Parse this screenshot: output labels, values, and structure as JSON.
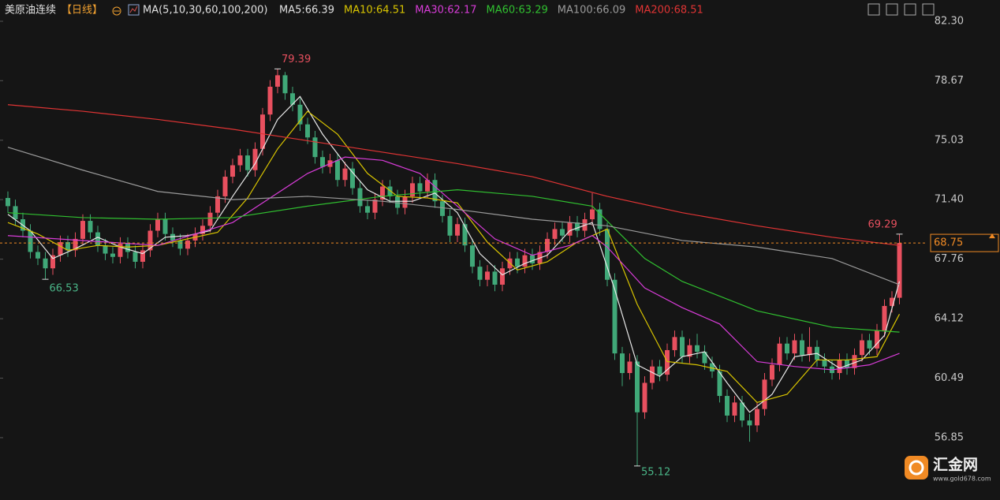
{
  "header": {
    "symbol": "美原油连续",
    "period": "【日线】",
    "ma_label": "MA(5,10,30,60,100,200)"
  },
  "logo": {
    "name": "汇金网",
    "url": "www.gold678.com"
  },
  "chart_data": {
    "type": "candlestick",
    "up_color": "#e8505f",
    "down_color": "#40a878",
    "last_price_color": "#f08a24",
    "ylim": [
      53.04,
      83.6
    ],
    "yticks": [
      {
        "value": 82.3,
        "label": "82.30"
      },
      78.67,
      75.03,
      {
        "value": 71.4,
        "label": "71.40"
      },
      67.76,
      64.12,
      60.49,
      56.85
    ],
    "open": [
      71.5,
      71.0,
      70.2,
      69.5,
      68.2,
      67.8,
      67.2,
      68.0,
      68.8,
      68.3,
      69.0,
      70.1,
      69.4,
      68.6,
      68.1,
      67.9,
      68.7,
      68.2,
      67.6,
      68.3,
      69.5,
      70.2,
      69.3,
      68.9,
      68.4,
      68.9,
      69.3,
      69.8,
      70.6,
      71.6,
      72.8,
      73.5,
      74.1,
      73.2,
      74.5,
      76.6,
      78.3,
      79.0,
      77.9,
      77.2,
      76.0,
      75.2,
      74.0,
      73.4,
      73.8,
      72.6,
      73.3,
      72.1,
      71.0,
      70.6,
      71.4,
      72.2,
      71.6,
      70.9,
      71.6,
      72.4,
      71.9,
      72.6,
      71.3,
      70.4,
      69.2,
      69.9,
      68.6,
      67.3,
      66.5,
      67.0,
      66.2,
      67.2,
      67.8,
      67.3,
      68.0,
      67.5,
      68.2,
      69.0,
      69.6,
      69.2,
      70.0,
      69.5,
      70.2,
      70.8,
      69.6,
      66.5,
      62.0,
      60.8,
      61.5,
      58.4,
      60.2,
      61.2,
      60.7,
      62.2,
      63.0,
      61.8,
      62.5,
      62.1,
      61.4,
      60.9,
      59.4,
      58.2,
      59.0,
      57.9,
      57.6,
      58.6,
      60.4,
      61.3,
      62.6,
      62.0,
      62.8,
      61.9,
      62.4,
      61.6,
      61.2,
      60.8,
      61.6,
      61.1,
      61.9,
      62.8,
      62.3,
      63.4,
      64.9,
      65.4
    ],
    "high": [
      71.9,
      71.4,
      70.6,
      69.9,
      68.6,
      68.2,
      68.4,
      69.2,
      69.2,
      69.4,
      70.5,
      70.5,
      69.8,
      69.0,
      68.5,
      69.1,
      69.1,
      68.6,
      68.7,
      69.9,
      70.6,
      70.6,
      69.7,
      69.3,
      69.3,
      69.7,
      70.2,
      71.0,
      72.0,
      73.2,
      73.9,
      74.5,
      74.5,
      74.9,
      77.0,
      78.7,
      79.39,
      79.2,
      78.3,
      77.6,
      76.4,
      75.6,
      74.4,
      74.2,
      74.2,
      73.7,
      73.7,
      72.5,
      71.4,
      71.8,
      72.6,
      72.6,
      72.0,
      72.0,
      72.8,
      72.8,
      73.0,
      73.0,
      71.7,
      70.8,
      70.3,
      70.3,
      69.0,
      67.7,
      67.4,
      67.4,
      67.6,
      68.2,
      68.2,
      68.4,
      68.4,
      68.6,
      69.4,
      70.0,
      70.0,
      70.4,
      70.4,
      70.6,
      71.8,
      71.2,
      70.0,
      66.9,
      62.4,
      62.0,
      61.9,
      60.6,
      61.6,
      61.6,
      62.6,
      63.4,
      63.4,
      62.9,
      63.2,
      62.5,
      61.8,
      61.3,
      59.8,
      59.4,
      59.4,
      58.3,
      59.0,
      60.8,
      61.7,
      63.0,
      63.0,
      63.2,
      63.2,
      63.6,
      62.8,
      62.0,
      61.6,
      62.0,
      62.0,
      62.3,
      63.2,
      63.2,
      63.8,
      65.3,
      65.8,
      69.29
    ],
    "low": [
      70.6,
      69.8,
      69.1,
      67.8,
      67.4,
      66.53,
      66.8,
      67.6,
      67.9,
      67.9,
      68.6,
      69.0,
      68.2,
      67.7,
      67.5,
      67.5,
      67.8,
      67.2,
      67.2,
      67.9,
      69.1,
      68.9,
      68.5,
      68.0,
      68.0,
      68.5,
      68.9,
      69.4,
      70.2,
      71.2,
      72.4,
      73.1,
      72.8,
      72.8,
      74.1,
      76.2,
      77.9,
      77.5,
      76.8,
      75.6,
      74.8,
      73.6,
      73.0,
      73.0,
      72.2,
      72.2,
      71.7,
      70.6,
      70.2,
      70.2,
      71.0,
      71.2,
      70.5,
      70.5,
      71.2,
      71.5,
      71.5,
      70.9,
      70.0,
      68.8,
      68.8,
      68.2,
      66.9,
      66.1,
      66.1,
      65.8,
      65.8,
      66.8,
      66.9,
      66.9,
      67.1,
      67.1,
      67.8,
      68.6,
      68.8,
      68.8,
      69.1,
      69.1,
      69.8,
      69.2,
      66.1,
      61.6,
      60.0,
      60.4,
      55.12,
      58.0,
      59.8,
      60.3,
      60.3,
      61.8,
      61.4,
      61.4,
      61.7,
      61.0,
      60.5,
      59.0,
      57.8,
      57.8,
      57.5,
      56.6,
      57.2,
      58.2,
      60.0,
      60.9,
      61.6,
      61.6,
      61.5,
      61.5,
      61.2,
      60.8,
      60.4,
      60.4,
      60.7,
      60.7,
      61.5,
      61.9,
      61.9,
      63.0,
      64.5,
      65.0
    ],
    "close": [
      71.0,
      70.2,
      69.5,
      68.2,
      67.8,
      67.2,
      68.0,
      68.8,
      68.3,
      69.0,
      70.1,
      69.4,
      68.6,
      68.1,
      67.9,
      68.7,
      68.2,
      67.6,
      68.3,
      69.5,
      70.2,
      69.3,
      68.9,
      68.4,
      68.9,
      69.3,
      69.8,
      70.6,
      71.6,
      72.8,
      73.5,
      74.1,
      73.2,
      74.5,
      76.6,
      78.3,
      79.0,
      77.9,
      77.2,
      76.0,
      75.2,
      74.0,
      73.4,
      73.8,
      72.6,
      73.3,
      72.1,
      71.0,
      70.6,
      71.4,
      72.2,
      71.6,
      70.9,
      71.6,
      72.4,
      71.9,
      72.6,
      71.3,
      70.4,
      69.2,
      69.9,
      68.6,
      67.3,
      66.5,
      67.0,
      66.2,
      67.2,
      67.8,
      67.3,
      68.0,
      67.5,
      68.2,
      69.0,
      69.6,
      69.2,
      70.0,
      69.5,
      70.2,
      70.8,
      69.6,
      66.5,
      62.0,
      60.8,
      61.5,
      58.4,
      60.2,
      61.2,
      60.7,
      62.2,
      63.0,
      61.8,
      62.5,
      62.1,
      61.4,
      60.9,
      59.4,
      58.2,
      59.0,
      57.9,
      57.6,
      58.6,
      60.4,
      61.3,
      62.6,
      62.0,
      62.8,
      61.9,
      62.4,
      61.6,
      61.2,
      60.8,
      61.6,
      61.1,
      61.9,
      62.8,
      62.3,
      63.4,
      64.9,
      65.4,
      68.75
    ],
    "overlays": [
      {
        "name": "MA5:66.39",
        "color": "#e8e8e8",
        "x": [
          0,
          3,
          6,
          9,
          12,
          15,
          18,
          21,
          24,
          27,
          30,
          33,
          36,
          39,
          42,
          45,
          48,
          51,
          54,
          57,
          60,
          63,
          66,
          69,
          72,
          75,
          78,
          81,
          84,
          87,
          90,
          93,
          96,
          99,
          102,
          105,
          108,
          111,
          114,
          117,
          119
        ],
        "values": [
          70.5,
          69.5,
          67.8,
          68.4,
          69.1,
          68.5,
          68.1,
          69.1,
          69.2,
          69.5,
          71.6,
          73.6,
          76.3,
          77.7,
          75.4,
          73.6,
          72.0,
          71.3,
          71.3,
          71.8,
          70.6,
          68.1,
          66.8,
          67.5,
          68.0,
          69.5,
          70.0,
          65.9,
          61.3,
          60.6,
          61.8,
          62.1,
          60.2,
          58.4,
          59.5,
          61.8,
          62.0,
          61.1,
          61.6,
          63.1,
          66.4
        ]
      },
      {
        "name": "MA10:64.51",
        "color": "#d8c400",
        "x": [
          0,
          4,
          8,
          12,
          16,
          20,
          24,
          28,
          32,
          36,
          40,
          44,
          48,
          52,
          56,
          60,
          64,
          68,
          72,
          76,
          80,
          84,
          88,
          92,
          96,
          100,
          104,
          108,
          112,
          116,
          119
        ],
        "values": [
          70.0,
          69.3,
          68.3,
          68.6,
          68.5,
          68.6,
          69.0,
          69.4,
          71.5,
          74.5,
          76.8,
          75.4,
          73.0,
          71.6,
          71.5,
          71.2,
          68.8,
          67.1,
          67.6,
          68.8,
          69.6,
          65.0,
          61.5,
          61.3,
          60.9,
          59.0,
          59.5,
          61.6,
          61.6,
          61.8,
          64.4
        ]
      },
      {
        "name": "MA30:62.17",
        "color": "#d83cd8",
        "x": [
          0,
          10,
          20,
          30,
          40,
          45,
          50,
          55,
          60,
          65,
          70,
          75,
          78,
          80,
          85,
          90,
          95,
          100,
          105,
          110,
          115,
          119
        ],
        "values": [
          69.2,
          68.9,
          68.6,
          70.0,
          73.0,
          74.0,
          73.8,
          73.0,
          71.0,
          69.0,
          68.0,
          68.6,
          69.2,
          68.5,
          66.0,
          64.8,
          63.8,
          61.5,
          61.2,
          61.0,
          61.3,
          62.0
        ]
      },
      {
        "name": "MA60:63.29",
        "color": "#30c030",
        "x": [
          0,
          10,
          20,
          30,
          40,
          50,
          60,
          70,
          78,
          85,
          90,
          100,
          110,
          119
        ],
        "values": [
          70.6,
          70.3,
          70.2,
          70.3,
          71.0,
          71.6,
          72.0,
          71.6,
          71.0,
          67.8,
          66.4,
          64.6,
          63.6,
          63.3
        ]
      },
      {
        "name": "MA100:66.09",
        "color": "#9a9a9a",
        "x": [
          0,
          10,
          20,
          30,
          40,
          50,
          60,
          70,
          80,
          90,
          100,
          110,
          119
        ],
        "values": [
          74.6,
          73.2,
          71.9,
          71.4,
          71.6,
          71.3,
          70.8,
          70.2,
          69.8,
          68.9,
          68.5,
          67.8,
          66.2
        ]
      },
      {
        "name": "MA200:68.51",
        "color": "#e03434",
        "x": [
          0,
          10,
          20,
          30,
          40,
          50,
          60,
          70,
          80,
          90,
          100,
          110,
          119
        ],
        "values": [
          77.2,
          76.8,
          76.3,
          75.7,
          75.0,
          74.3,
          73.6,
          72.8,
          71.6,
          70.6,
          69.8,
          69.1,
          68.6
        ]
      }
    ]
  }
}
